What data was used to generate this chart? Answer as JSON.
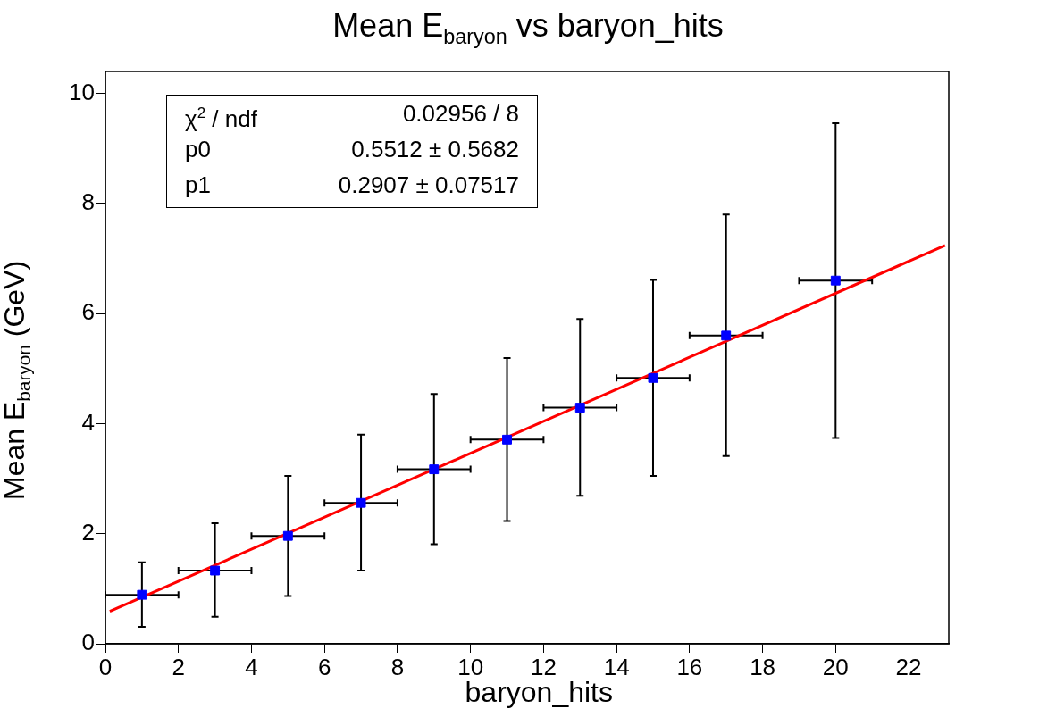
{
  "chart_data": {
    "type": "scatter",
    "title": "Mean E$_{baryon}$ vs baryon_hits",
    "xlabel": "baryon_hits",
    "ylabel": "Mean E$_{baryon}$ (GeV)",
    "xlim": [
      0,
      23.1
    ],
    "ylim": [
      0,
      10.4
    ],
    "xticks": [
      0,
      2,
      4,
      6,
      8,
      10,
      12,
      14,
      16,
      18,
      20,
      22
    ],
    "yticks": [
      0,
      2,
      4,
      6,
      8,
      10
    ],
    "grid": false,
    "annotations": [
      "χ$^{2}$ / ndf",
      "0.02956 / 8",
      "p0",
      "0.5512 ± 0.5682",
      "p1",
      "0.2907 ± 0.07517"
    ],
    "series": [
      {
        "color": "#0000ff",
        "marker": "square",
        "x": [
          1,
          3,
          5,
          7,
          9,
          11,
          13,
          15,
          17,
          20
        ],
        "values": [
          0.89,
          1.33,
          1.96,
          2.56,
          3.17,
          3.71,
          4.29,
          4.83,
          5.6,
          6.6
        ],
        "errors": [
          [
            0.31,
            1.48
          ],
          [
            0.49,
            2.19
          ],
          [
            0.87,
            3.05
          ],
          [
            1.33,
            3.8
          ],
          [
            1.81,
            4.54
          ],
          [
            2.23,
            5.19
          ],
          [
            2.69,
            5.9
          ],
          [
            3.05,
            6.61
          ],
          [
            3.41,
            7.8
          ],
          [
            3.74,
            9.46
          ]
        ],
        "xerrors": [
          [
            0,
            2
          ],
          [
            2,
            4
          ],
          [
            4,
            6
          ],
          [
            6,
            8
          ],
          [
            8,
            10
          ],
          [
            10,
            12
          ],
          [
            12,
            14
          ],
          [
            14,
            16
          ],
          [
            16,
            18
          ],
          [
            19,
            21
          ]
        ]
      },
      {
        "type": "line",
        "color": "#ff0000",
        "line_style": "solid",
        "marker": "none",
        "x": [
          0.12,
          23
        ],
        "values": [
          0.59,
          7.24
        ]
      }
    ]
  }
}
